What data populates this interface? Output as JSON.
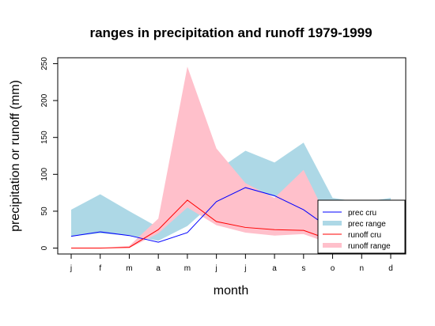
{
  "chart_data": {
    "type": "area",
    "title": "ranges in precipitation and runoff 1979-1999",
    "xlabel": "month",
    "ylabel": "precipitation or runoff (mm)",
    "categories": [
      "j",
      "f",
      "m",
      "a",
      "m",
      "j",
      "j",
      "a",
      "s",
      "o",
      "n",
      "d"
    ],
    "ylim": [
      -8,
      258
    ],
    "yticks": [
      0,
      50,
      100,
      150,
      200,
      250
    ],
    "legend_position": "bottom-right",
    "series": [
      {
        "name": "prec range",
        "kind": "band",
        "color": "#add8e6",
        "lower": [
          16,
          20,
          17,
          10,
          30,
          65,
          80,
          70,
          52,
          28,
          20,
          15
        ],
        "upper": [
          52,
          73,
          50,
          28,
          58,
          105,
          132,
          116,
          143,
          68,
          62,
          68
        ]
      },
      {
        "name": "runoff range",
        "kind": "band",
        "color": "#ffc0cb",
        "lower": [
          0,
          0,
          0,
          20,
          55,
          31,
          21,
          17,
          19,
          5,
          1,
          0
        ],
        "upper": [
          0,
          0,
          3,
          40,
          246,
          135,
          88,
          68,
          106,
          26,
          8,
          3
        ]
      },
      {
        "name": "prec cru",
        "kind": "line",
        "color": "#0000ff",
        "values": [
          16,
          22,
          17,
          8,
          21,
          63,
          82,
          71,
          52,
          24,
          17,
          14
        ]
      },
      {
        "name": "runoff cru",
        "kind": "line",
        "color": "#ff0000",
        "values": [
          0,
          0,
          1,
          25,
          65,
          36,
          28,
          25,
          24,
          10,
          2,
          1
        ]
      }
    ],
    "legend": [
      "prec cru",
      "prec range",
      "runoff cru",
      "runoff range"
    ]
  }
}
